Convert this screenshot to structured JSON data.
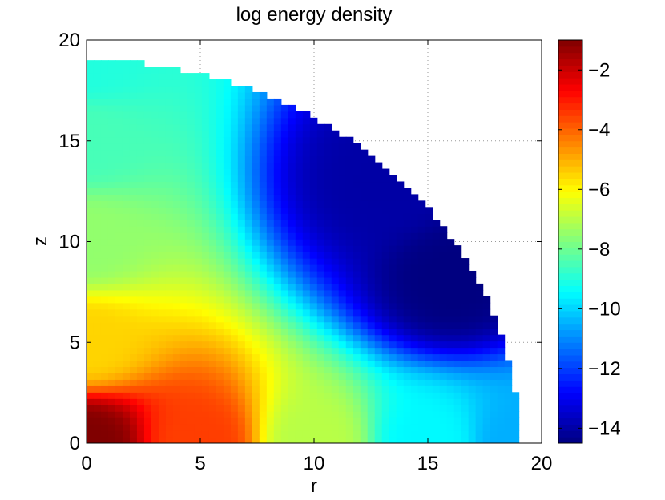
{
  "chart_data": {
    "type": "heatmap",
    "title": "log energy density",
    "xlabel": "r",
    "ylabel": "z",
    "xlim": [
      0,
      20
    ],
    "ylim": [
      0,
      20
    ],
    "xticks": [
      0,
      5,
      10,
      15,
      20
    ],
    "yticks": [
      0,
      5,
      10,
      15,
      20
    ],
    "grid": true,
    "domain": "quarter disk, radius 19",
    "colormap": "jet",
    "colorbar": {
      "placement": "right",
      "range": [
        -14.5,
        -1
      ],
      "ticks": [
        -14,
        -12,
        -10,
        -8,
        -6,
        -4,
        -2
      ],
      "tick_labels": [
        "−14",
        "−12",
        "−10",
        "−8",
        "−6",
        "−4",
        "−2"
      ]
    },
    "field_samples": [
      {
        "r": 0,
        "z": 0,
        "value": -1
      },
      {
        "r": 5,
        "z": 0,
        "value": -3.5
      },
      {
        "r": 10,
        "z": 0,
        "value": -7
      },
      {
        "r": 15,
        "z": 0,
        "value": -9.5
      },
      {
        "r": 19,
        "z": 0,
        "value": -10.5
      },
      {
        "r": 0,
        "z": 5,
        "value": -5.5
      },
      {
        "r": 0,
        "z": 10,
        "value": -7.5
      },
      {
        "r": 0,
        "z": 15,
        "value": -8.5
      },
      {
        "r": 0,
        "z": 19,
        "value": -9
      },
      {
        "r": 13,
        "z": 13,
        "value": -14
      },
      {
        "r": 16,
        "z": 8,
        "value": -14.5
      }
    ]
  }
}
